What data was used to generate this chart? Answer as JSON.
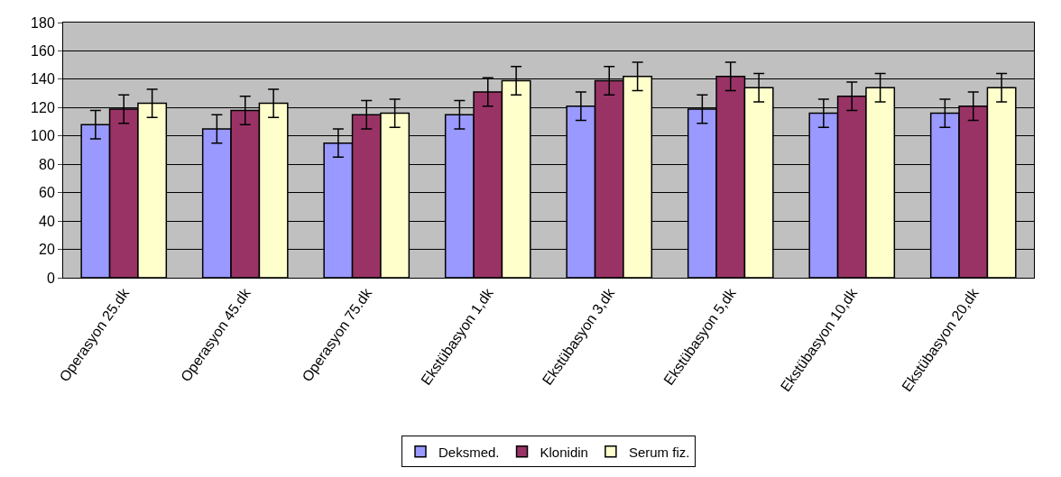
{
  "chart_data": {
    "type": "bar",
    "categories": [
      "Operasyon 25.dk",
      "Operasyon 45.dk",
      "Operasyon 75.dk",
      "Ekstübasyon 1,dk",
      "Ekstübasyon 3,dk",
      "Ekstübasyon 5,dk",
      "Ekstübasyon 10,dk",
      "Ekstübasyon 20,dk"
    ],
    "series": [
      {
        "name": "Deksmed.",
        "color": "#9999ff",
        "values": [
          108,
          105,
          95,
          115,
          121,
          119,
          116,
          116
        ],
        "errors": [
          10,
          10,
          10,
          10,
          10,
          10,
          10,
          10
        ]
      },
      {
        "name": "Klonidin",
        "color": "#993366",
        "values": [
          119,
          118,
          115,
          131,
          139,
          142,
          128,
          121
        ],
        "errors": [
          10,
          10,
          10,
          10,
          10,
          10,
          10,
          10
        ]
      },
      {
        "name": "Serum fiz.",
        "color": "#ffffcc",
        "values": [
          123,
          123,
          116,
          139,
          142,
          134,
          134,
          134
        ],
        "errors": [
          10,
          10,
          10,
          10,
          10,
          10,
          10,
          10
        ]
      }
    ],
    "ylim": [
      0,
      180
    ],
    "yticks": [
      0,
      20,
      40,
      60,
      80,
      100,
      120,
      140,
      160,
      180
    ],
    "grid": "y",
    "legend": "bottom"
  }
}
